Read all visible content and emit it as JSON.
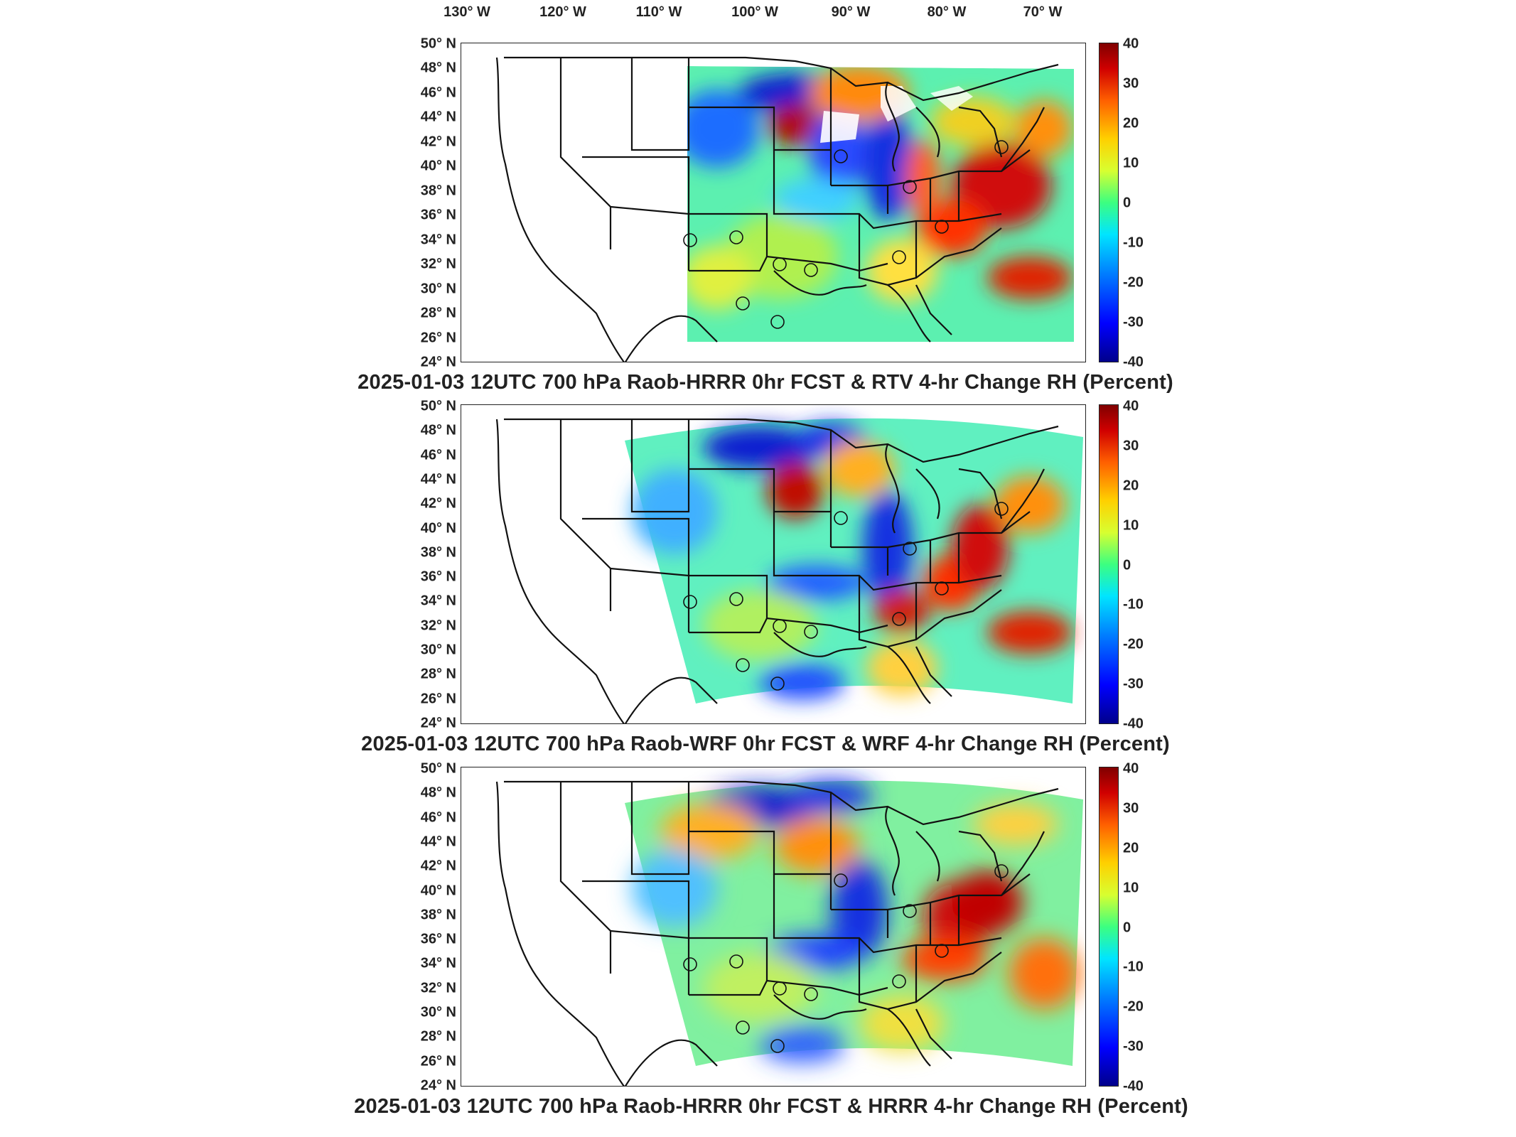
{
  "lon_labels": [
    "130° W",
    "120° W",
    "110° W",
    "100° W",
    "90° W",
    "80° W",
    "70° W"
  ],
  "lat_labels": [
    "50° N",
    "48° N",
    "46° N",
    "44° N",
    "42° N",
    "40° N",
    "38° N",
    "36° N",
    "34° N",
    "32° N",
    "30° N",
    "28° N",
    "26° N",
    "24° N"
  ],
  "colorbar_ticks": [
    "40",
    "30",
    "20",
    "10",
    "0",
    "-10",
    "-20",
    "-30",
    "-40"
  ],
  "colors": {
    "frame": "#222222",
    "land": "#ffffff",
    "colormap": "jet"
  },
  "panels": [
    {
      "title": "2025-01-03 12UTC 700 hPa Raob-HRRR 0hr FCST & RTV 4-hr Change RH (Percent)"
    },
    {
      "title": "2025-01-03 12UTC 700 hPa Raob-WRF 0hr FCST & WRF 4-hr Change RH (Percent)"
    },
    {
      "title": "2025-01-03 12UTC 700 hPa Raob-HRRR 0hr FCST & HRRR 4-hr Change RH (Percent)"
    }
  ]
}
